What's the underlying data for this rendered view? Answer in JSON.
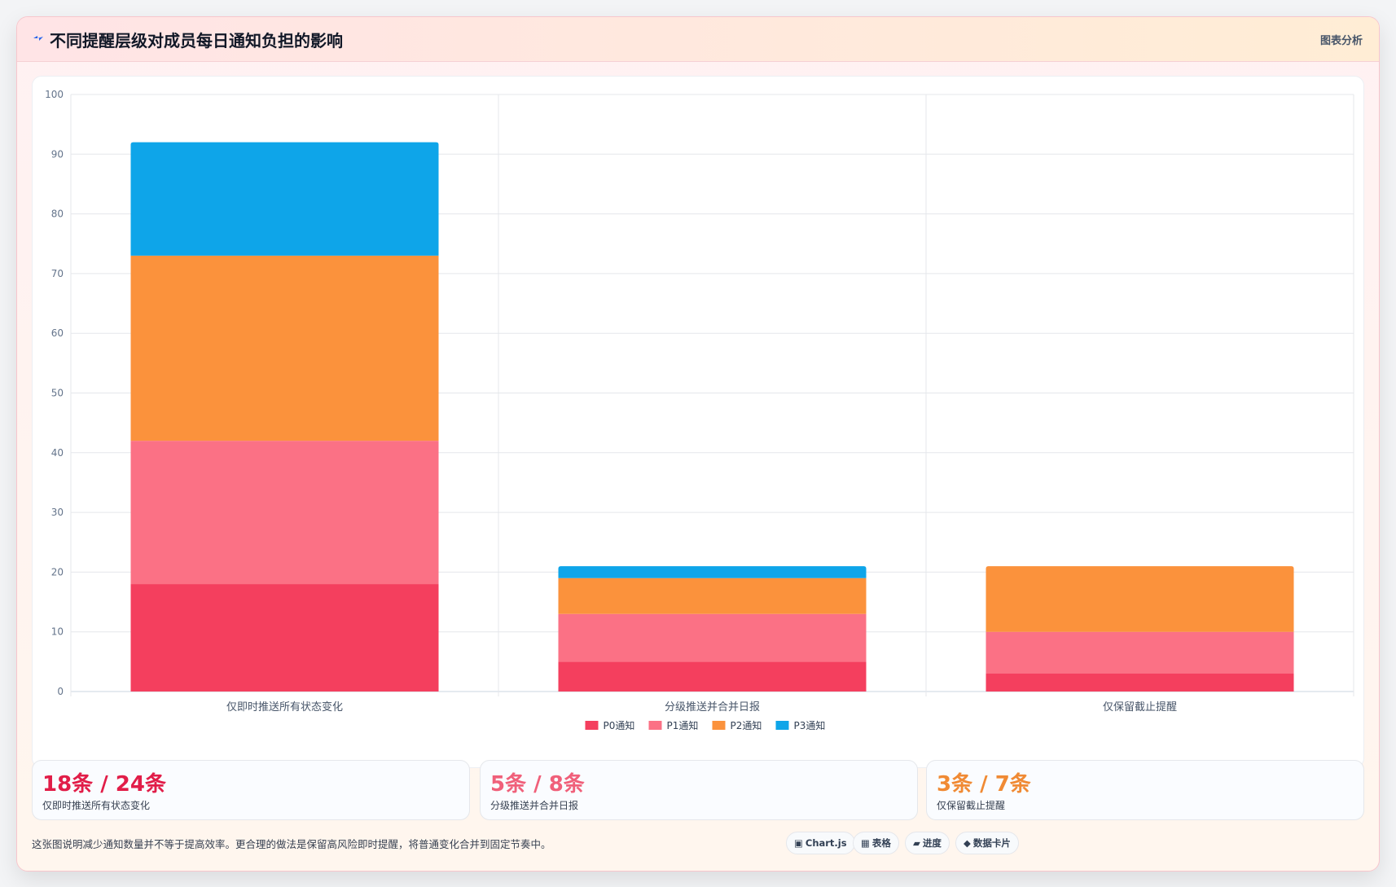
{
  "header": {
    "title": "不同提醒层级对成员每日通知负担的影响",
    "link_label": "图表分析"
  },
  "colors": {
    "p0": "#f43f5e",
    "p1": "#fb7185",
    "p2": "#fb923c",
    "p3": "#0ea5e9"
  },
  "chart_data": {
    "type": "bar",
    "stacked": true,
    "categories": [
      "仅即时推送所有状态变化",
      "分级推送并合并日报",
      "仅保留截止提醒"
    ],
    "series": [
      {
        "name": "P0通知",
        "color": "#f43f5e",
        "values": [
          18,
          5,
          3
        ]
      },
      {
        "name": "P1通知",
        "color": "#fb7185",
        "values": [
          24,
          8,
          7
        ]
      },
      {
        "name": "P2通知",
        "color": "#fb923c",
        "values": [
          31,
          6,
          11
        ]
      },
      {
        "name": "P3通知",
        "color": "#0ea5e9",
        "values": [
          19,
          2,
          0
        ]
      }
    ],
    "ylim": [
      0,
      100
    ],
    "yticks": [
      0,
      10,
      20,
      30,
      40,
      50,
      60,
      70,
      80,
      90,
      100
    ],
    "grid": true,
    "legend": "bottom"
  },
  "stats": [
    {
      "value": "18条 / 24条",
      "label": "仅即时推送所有状态变化",
      "color": "#e11d48"
    },
    {
      "value": "5条 / 8条",
      "label": "分级推送并合并日报",
      "color": "#f0607a"
    },
    {
      "value": "3条 / 7条",
      "label": "仅保留截止提醒",
      "color": "#f08a34"
    }
  ],
  "footer": {
    "note": "这张图说明减少通知数量并不等于提高效率。更合理的做法是保留高风险即时提醒，将普通变化合并到固定节奏中。",
    "badges": [
      {
        "icon": "▣",
        "label": "Chart.js"
      },
      {
        "icon": "▦",
        "label": "表格"
      },
      {
        "icon": "▰",
        "label": "进度"
      },
      {
        "icon": "◆",
        "label": "数据卡片"
      }
    ]
  }
}
